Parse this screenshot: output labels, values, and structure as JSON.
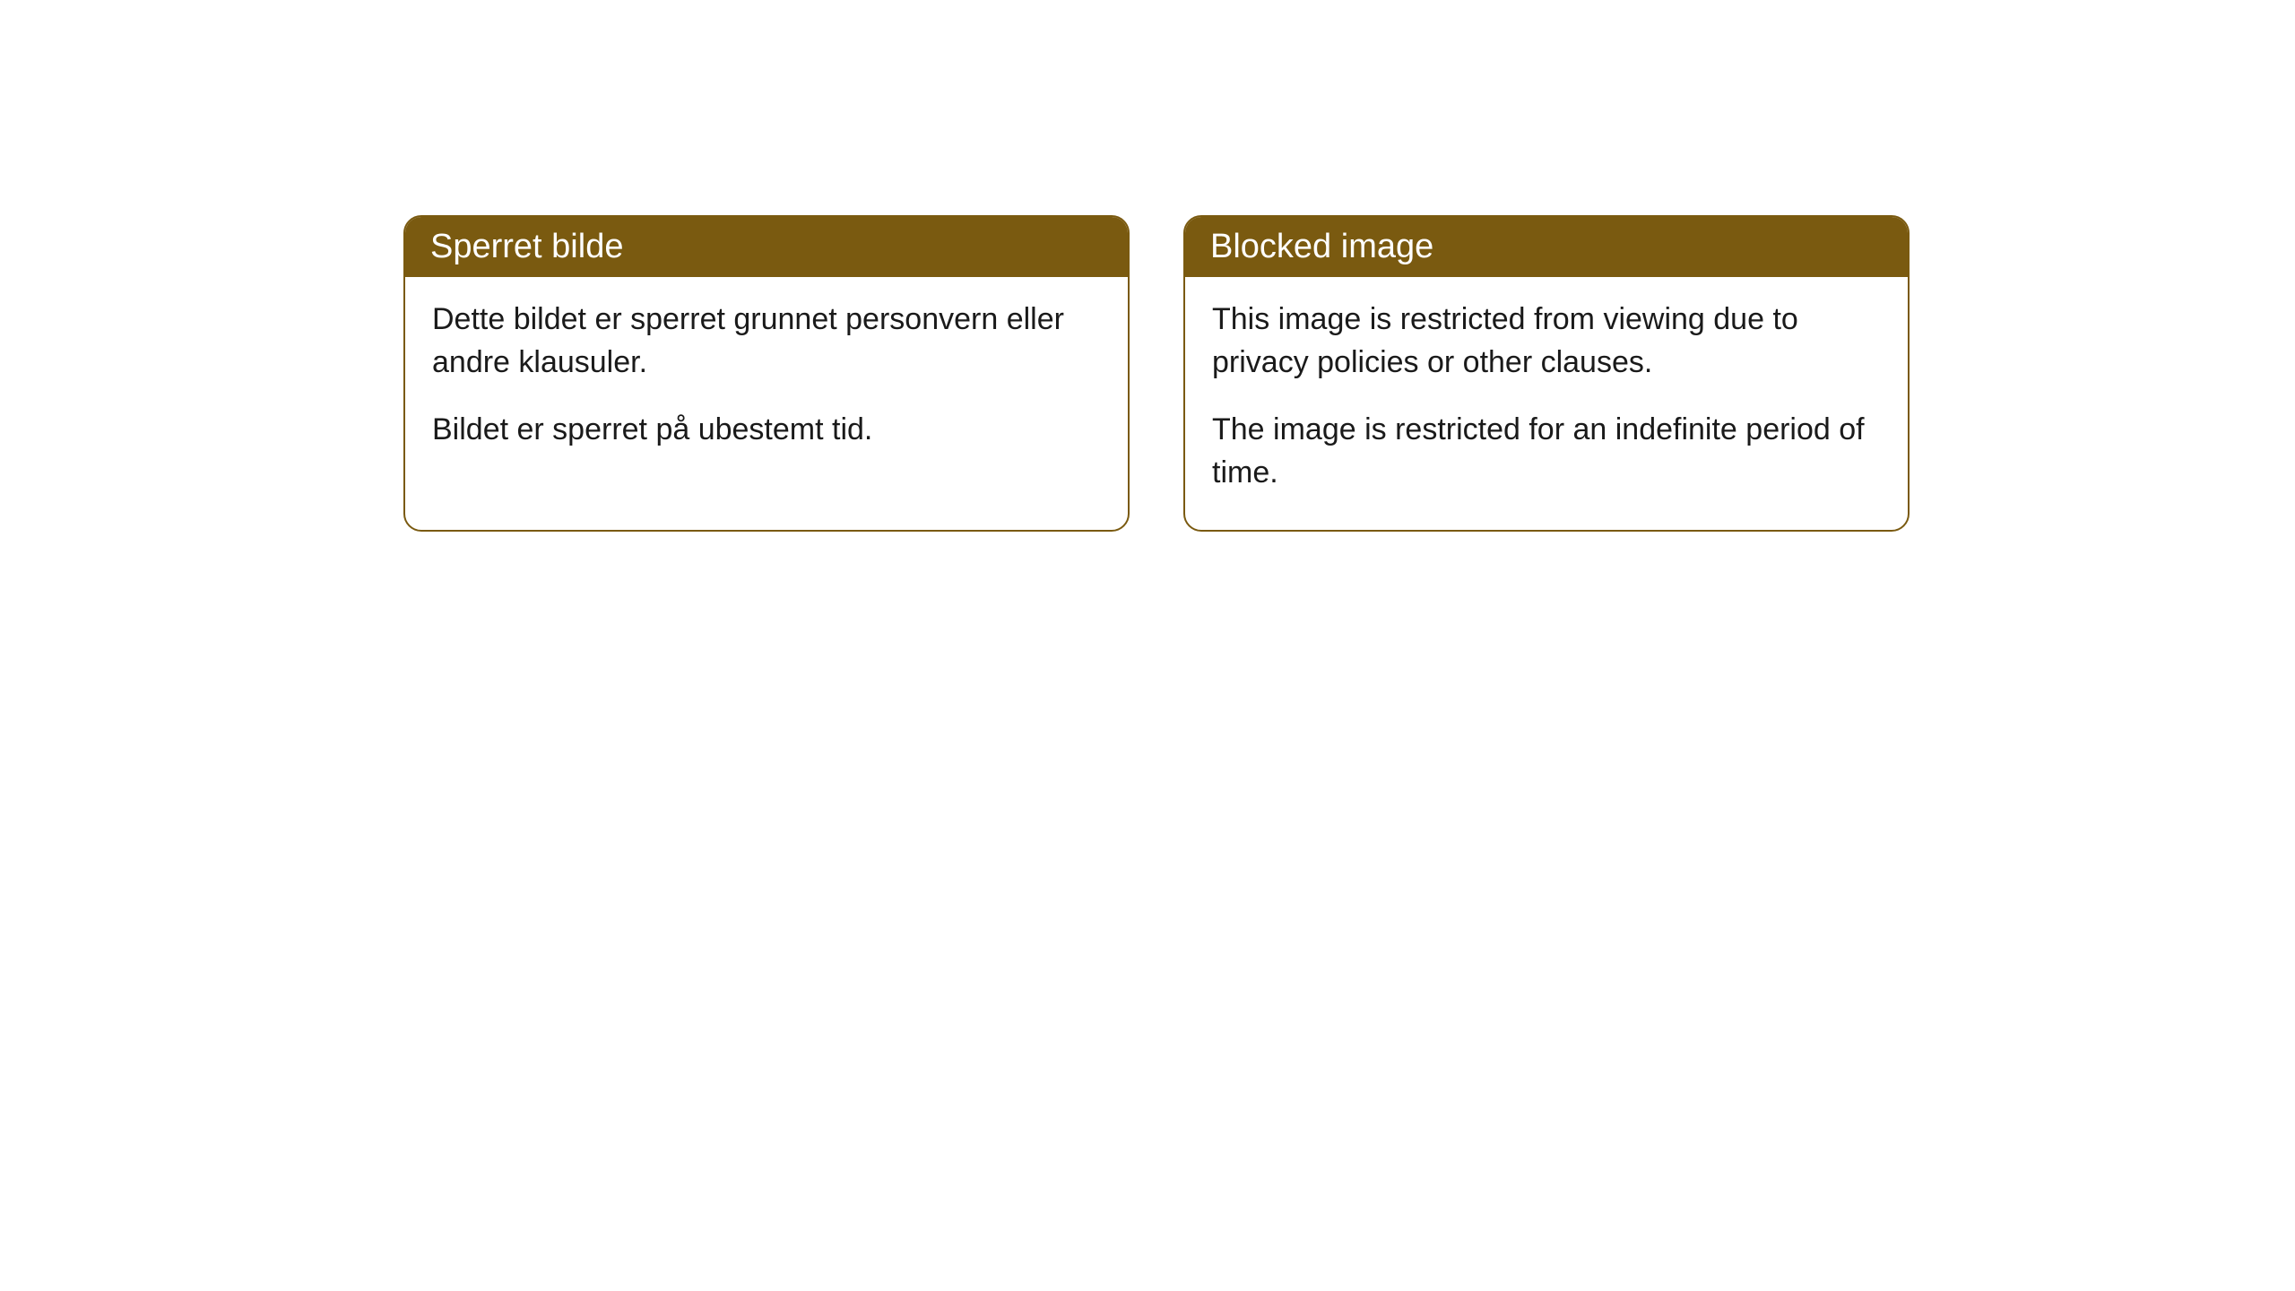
{
  "cards": [
    {
      "title": "Sperret bilde",
      "paragraph1": "Dette bildet er sperret grunnet personvern eller andre klausuler.",
      "paragraph2": "Bildet er sperret på ubestemt tid."
    },
    {
      "title": "Blocked image",
      "paragraph1": "This image is restricted from viewing due to privacy policies or other clauses.",
      "paragraph2": "The image is restricted for an indefinite period of time."
    }
  ],
  "styling": {
    "header_bg_color": "#7a5a10",
    "header_text_color": "#ffffff",
    "border_color": "#7a5a10",
    "body_bg_color": "#ffffff",
    "body_text_color": "#1a1a1a",
    "border_radius": 20,
    "header_fontsize": 38,
    "body_fontsize": 34
  }
}
